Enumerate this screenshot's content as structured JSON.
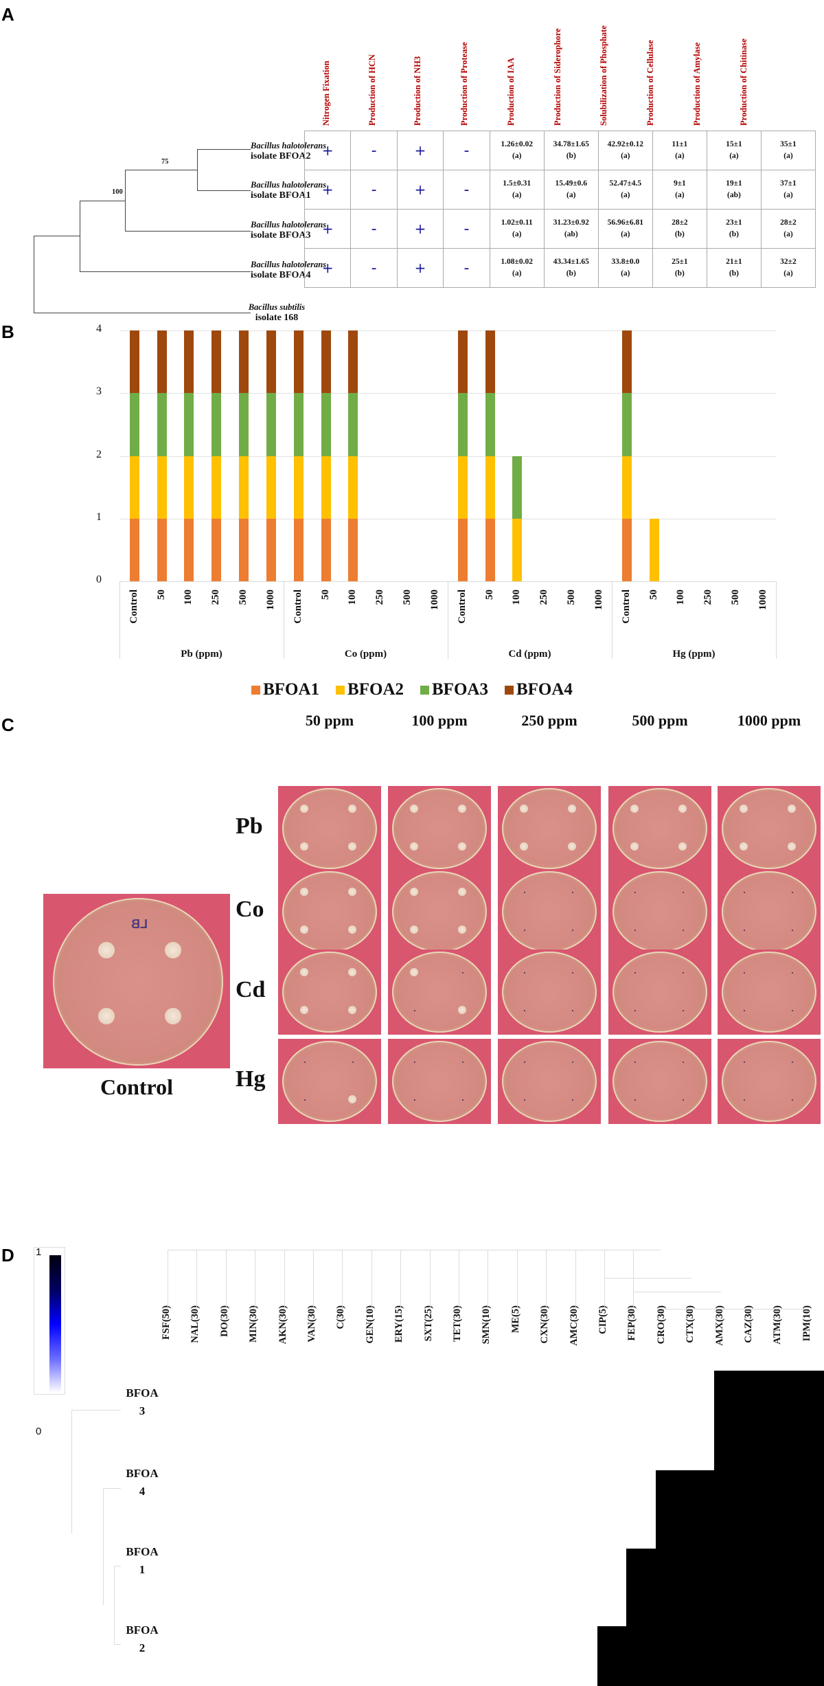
{
  "panels": {
    "a": {
      "letter": "A"
    },
    "b": {
      "letter": "B"
    },
    "c": {
      "letter": "C"
    },
    "d": {
      "letter": "D"
    }
  },
  "panel_a": {
    "column_headers": [
      "Nitrogen Fixation",
      "Production of HCN",
      "Production of NH3",
      "Production of Protease",
      "Production of IAA",
      "Production of Siderophore",
      "Solubilization of Phosphate",
      "Production of Cellulase",
      "Production of Amylase",
      "Production of Chitinase"
    ],
    "bootstrap_values": [
      "75",
      "100"
    ],
    "taxa": [
      {
        "species": "Bacillus halotolerans",
        "isolate": "isolate BFOA2"
      },
      {
        "species": "Bacillus halotolerans",
        "isolate": "isolate BFOA1"
      },
      {
        "species": "Bacillus halotolerans",
        "isolate": "isolate BFOA3"
      },
      {
        "species": "Bacillus halotolerans",
        "isolate": "isolate BFOA4"
      },
      {
        "species": "Bacillus subtilis",
        "isolate": "isolate 168"
      }
    ],
    "rows": [
      {
        "isolate": "BFOA2",
        "cells": [
          {
            "v": "+"
          },
          {
            "v": "-"
          },
          {
            "v": "+"
          },
          {
            "v": "-"
          },
          {
            "v": "1.26±0.02",
            "g": "(a)"
          },
          {
            "v": "34.78±1.65",
            "g": "(b)"
          },
          {
            "v": "42.92±0.12",
            "g": "(a)"
          },
          {
            "v": "11±1",
            "g": "(a)"
          },
          {
            "v": "15±1",
            "g": "(a)"
          },
          {
            "v": "35±1",
            "g": "(a)"
          }
        ]
      },
      {
        "isolate": "BFOA1",
        "cells": [
          {
            "v": "+"
          },
          {
            "v": "-"
          },
          {
            "v": "+"
          },
          {
            "v": "-"
          },
          {
            "v": "1.5±0.31",
            "g": "(a)"
          },
          {
            "v": "15.49±0.6",
            "g": "(a)"
          },
          {
            "v": "52.47±4.5",
            "g": "(a)"
          },
          {
            "v": "9±1",
            "g": "(a)"
          },
          {
            "v": "19±1",
            "g": "(ab)"
          },
          {
            "v": "37±1",
            "g": "(a)"
          }
        ]
      },
      {
        "isolate": "BFOA3",
        "cells": [
          {
            "v": "+"
          },
          {
            "v": "-"
          },
          {
            "v": "+"
          },
          {
            "v": "-"
          },
          {
            "v": "1.02±0.11",
            "g": "(a)"
          },
          {
            "v": "31.23±0.92",
            "g": "(ab)"
          },
          {
            "v": "56.96±6.81",
            "g": "(a)"
          },
          {
            "v": "28±2",
            "g": "(b)"
          },
          {
            "v": "23±1",
            "g": "(b)"
          },
          {
            "v": "28±2",
            "g": "(a)"
          }
        ]
      },
      {
        "isolate": "BFOA4",
        "cells": [
          {
            "v": "+"
          },
          {
            "v": "-"
          },
          {
            "v": "+"
          },
          {
            "v": "-"
          },
          {
            "v": "1.08±0.02",
            "g": "(a)"
          },
          {
            "v": "43.34±1.65",
            "g": "(b)"
          },
          {
            "v": "33.8±0.0",
            "g": "(a)"
          },
          {
            "v": "25±1",
            "g": "(b)"
          },
          {
            "v": "21±1",
            "g": "(b)"
          },
          {
            "v": "32±2",
            "g": "(a)"
          }
        ]
      }
    ]
  },
  "chart_data": [
    {
      "type": "table",
      "title": "Plant growth promoting traits of Bacillus halotolerans isolates",
      "columns": [
        "Nitrogen Fixation",
        "Production of HCN",
        "Production of NH3",
        "Production of Protease",
        "Production of IAA",
        "Production of Siderophore",
        "Solubilization of Phosphate",
        "Production of Cellulase",
        "Production of Amylase",
        "Production of Chitinase"
      ],
      "rows": {
        "BFOA2": [
          "+",
          "-",
          "+",
          "-",
          "1.26±0.02 (a)",
          "34.78±1.65 (b)",
          "42.92±0.12 (a)",
          "11±1 (a)",
          "15±1 (a)",
          "35±1 (a)"
        ],
        "BFOA1": [
          "+",
          "-",
          "+",
          "-",
          "1.5±0.31 (a)",
          "15.49±0.6 (a)",
          "52.47±4.5 (a)",
          "9±1 (a)",
          "19±1 (ab)",
          "37±1 (a)"
        ],
        "BFOA3": [
          "+",
          "-",
          "+",
          "-",
          "1.02±0.11 (a)",
          "31.23±0.92 (ab)",
          "56.96±6.81 (a)",
          "28±2 (b)",
          "23±1 (b)",
          "28±2 (a)"
        ],
        "BFOA4": [
          "+",
          "-",
          "+",
          "-",
          "1.08±0.02 (a)",
          "43.34±1.65 (b)",
          "33.8±0.0 (a)",
          "25±1 (b)",
          "21±1 (b)",
          "32±2 (a)"
        ]
      },
      "tree": {
        "bootstrap": {
          "BFOA2+BFOA1": 75,
          "BFOA2+BFOA1+BFOA3": 100
        },
        "outgroup": "Bacillus subtilis isolate 168"
      }
    },
    {
      "type": "bar",
      "stacked": true,
      "title": "",
      "xlabel": "",
      "ylabel": "",
      "ylim": [
        0,
        4
      ],
      "yticks": [
        "0",
        "1",
        "2",
        "3",
        "4"
      ],
      "grid": true,
      "legend_position": "bottom",
      "groups": [
        "Pb (ppm)",
        "Co (ppm)",
        "Cd (ppm)",
        "Hg (ppm)"
      ],
      "categories": [
        "Control",
        "50",
        "100",
        "250",
        "500",
        "1000"
      ],
      "series": [
        {
          "name": "BFOA1",
          "color": "#ed7d31",
          "values": {
            "Pb (ppm)": [
              1,
              1,
              1,
              1,
              1,
              1
            ],
            "Co (ppm)": [
              1,
              1,
              1,
              0,
              0,
              0
            ],
            "Cd (ppm)": [
              1,
              1,
              0,
              0,
              0,
              0
            ],
            "Hg (ppm)": [
              1,
              0,
              0,
              0,
              0,
              0
            ]
          }
        },
        {
          "name": "BFOA2",
          "color": "#ffc000",
          "values": {
            "Pb (ppm)": [
              1,
              1,
              1,
              1,
              1,
              1
            ],
            "Co (ppm)": [
              1,
              1,
              1,
              0,
              0,
              0
            ],
            "Cd (ppm)": [
              1,
              1,
              1,
              0,
              0,
              0
            ],
            "Hg (ppm)": [
              1,
              1,
              0,
              0,
              0,
              0
            ]
          }
        },
        {
          "name": "BFOA3",
          "color": "#70ad47",
          "values": {
            "Pb (ppm)": [
              1,
              1,
              1,
              1,
              1,
              1
            ],
            "Co (ppm)": [
              1,
              1,
              1,
              0,
              0,
              0
            ],
            "Cd (ppm)": [
              1,
              1,
              1,
              0,
              0,
              0
            ],
            "Hg (ppm)": [
              1,
              0,
              0,
              0,
              0,
              0
            ]
          }
        },
        {
          "name": "BFOA4",
          "color": "#9e480e",
          "values": {
            "Pb (ppm)": [
              1,
              1,
              1,
              1,
              1,
              1
            ],
            "Co (ppm)": [
              1,
              1,
              1,
              0,
              0,
              0
            ],
            "Cd (ppm)": [
              1,
              1,
              0,
              0,
              0,
              0
            ],
            "Hg (ppm)": [
              1,
              0,
              0,
              0,
              0,
              0
            ]
          }
        }
      ]
    },
    {
      "type": "heatmap",
      "title": "",
      "colorscale": {
        "min": 0,
        "max": 1,
        "min_label": "0",
        "max_label": "1",
        "colors": [
          "#ffffff",
          "#0000ff",
          "#000000"
        ]
      },
      "x": [
        "FSF(50)",
        "NAL(30)",
        "DO(30)",
        "MIN(30)",
        "AKN(30)",
        "VAN(30)",
        "C(30)",
        "GEN(10)",
        "ERY(15)",
        "SXT(25)",
        "TET(30)",
        "SMN(10)",
        "ME(5)",
        "CXN(30)",
        "AMC(30)",
        "CIP(5)",
        "FEP(30)",
        "CRO(30)",
        "CTX(30)",
        "AMX(30)",
        "CAZ(30)",
        "ATM(30)",
        "IPM(10)"
      ],
      "y": [
        "BFOA3",
        "BFOA4",
        "BFOA1",
        "BFOA2"
      ],
      "values": [
        [
          0,
          0,
          0,
          0,
          0,
          0,
          0,
          0,
          0,
          0,
          0,
          0,
          0,
          0,
          0,
          0,
          0,
          0,
          0,
          1,
          1,
          1,
          1
        ],
        [
          0,
          0,
          0,
          0,
          0,
          0,
          0,
          0,
          0,
          0,
          0,
          0,
          0,
          0,
          0,
          0,
          0,
          1,
          1,
          1,
          1,
          1,
          1
        ],
        [
          0,
          0,
          0,
          0,
          0,
          0,
          0,
          0,
          0,
          0,
          0,
          0,
          0,
          0,
          0,
          0,
          1,
          1,
          1,
          1,
          1,
          1,
          1
        ],
        [
          0,
          0,
          0,
          0,
          0,
          0,
          0,
          0,
          0,
          0,
          0,
          0,
          0,
          0,
          0,
          1,
          1,
          1,
          1,
          1,
          1,
          1,
          1
        ]
      ]
    }
  ],
  "panel_b": {
    "yticks": [
      "4",
      "3",
      "2",
      "1",
      "0"
    ],
    "groups": [
      "Pb (ppm)",
      "Co (ppm)",
      "Cd (ppm)",
      "Hg (ppm)"
    ],
    "categories": [
      "Control",
      "50",
      "100",
      "250",
      "500",
      "1000"
    ],
    "legend": [
      {
        "label": "BFOA1",
        "color": "#ed7d31"
      },
      {
        "label": "BFOA2",
        "color": "#ffc000"
      },
      {
        "label": "BFOA3",
        "color": "#70ad47"
      },
      {
        "label": "BFOA4",
        "color": "#9e480e"
      }
    ]
  },
  "panel_c": {
    "concentrations": [
      "50 ppm",
      "100 ppm",
      "250 ppm",
      "500 ppm",
      "1000 ppm"
    ],
    "metals": [
      "Pb",
      "Co",
      "Cd",
      "Hg"
    ],
    "control_label": "Control",
    "control_plate_mark": "LB"
  },
  "panel_d": {
    "scale_max": "1",
    "scale_min": "0",
    "antibiotics": [
      "FSF(50)",
      "NAL(30)",
      "DO(30)",
      "MIN(30)",
      "AKN(30)",
      "VAN(30)",
      "C(30)",
      "GEN(10)",
      "ERY(15)",
      "SXT(25)",
      "TET(30)",
      "SMN(10)",
      "ME(5)",
      "CXN(30)",
      "AMC(30)",
      "CIP(5)",
      "FEP(30)",
      "CRO(30)",
      "CTX(30)",
      "AMX(30)",
      "CAZ(30)",
      "ATM(30)",
      "IPM(10)"
    ],
    "rows": [
      {
        "prefix": "BFOA",
        "num": "3"
      },
      {
        "prefix": "BFOA",
        "num": "4"
      },
      {
        "prefix": "BFOA",
        "num": "1"
      },
      {
        "prefix": "BFOA",
        "num": "2"
      }
    ]
  }
}
